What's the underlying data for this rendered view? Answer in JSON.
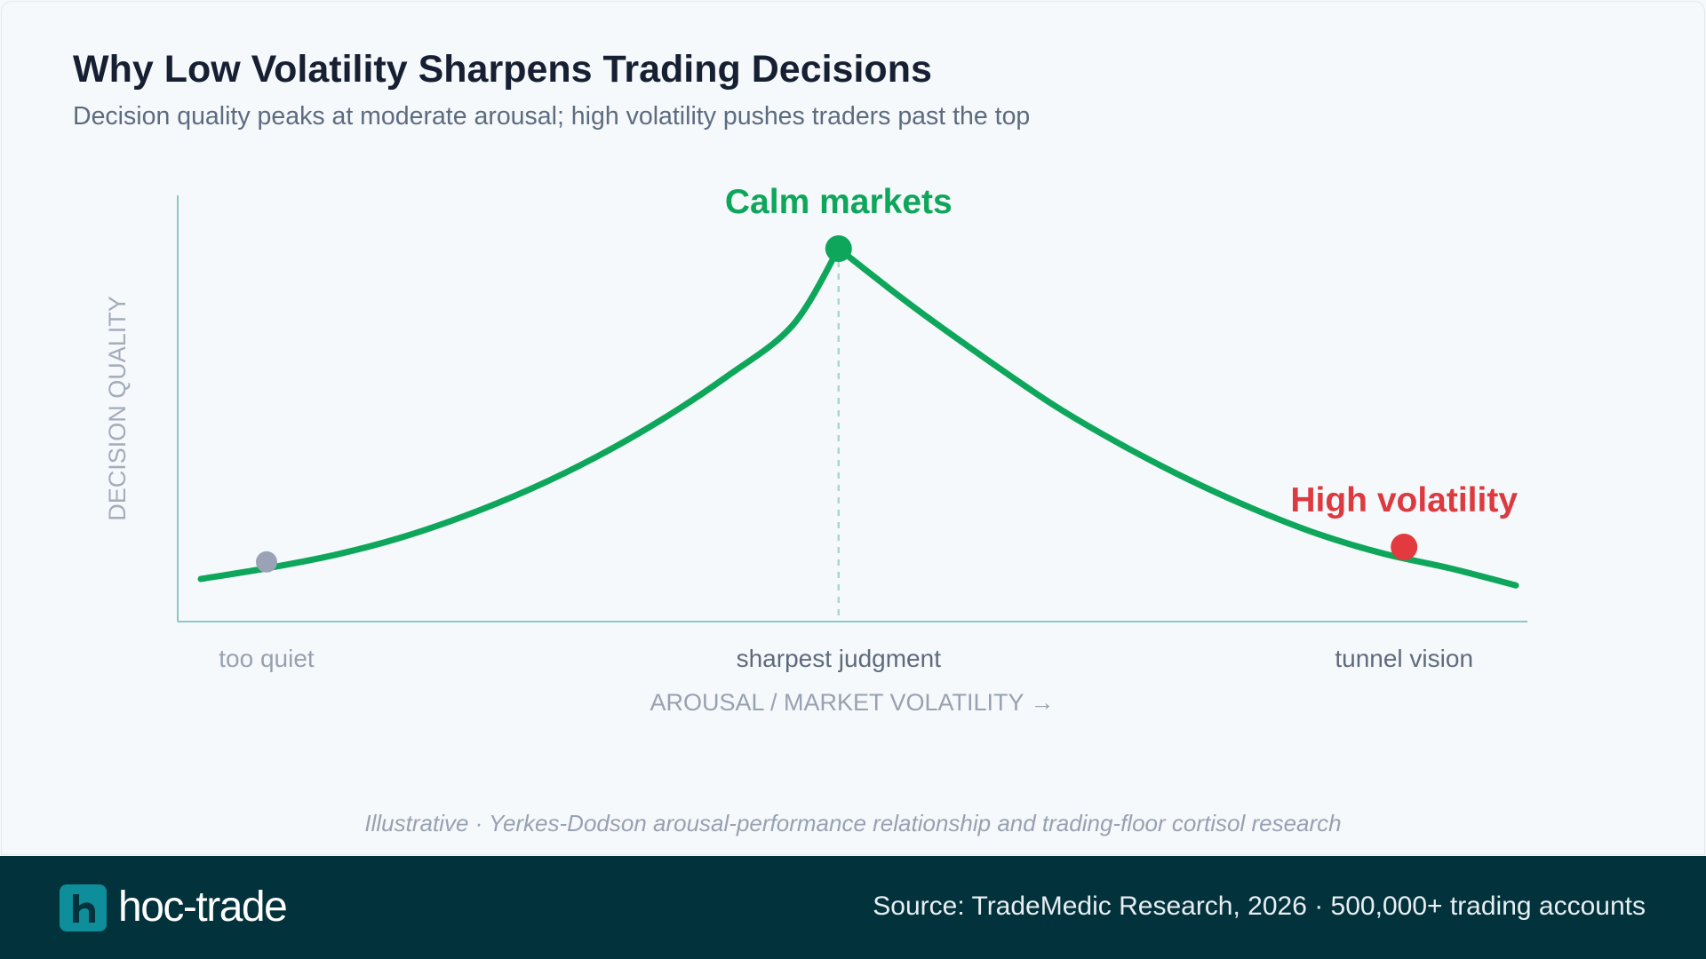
{
  "header": {
    "title": "Why Low Volatility Sharpens Trading Decisions",
    "subtitle": "Decision quality peaks at moderate arousal; high volatility pushes traders past the top"
  },
  "chart_data": {
    "type": "line",
    "title": "Why Low Volatility Sharpens Trading Decisions",
    "subtitle": "Decision quality peaks at moderate arousal; high volatility pushes traders past the top",
    "xlabel": "AROUSAL / MARKET VOLATILITY →",
    "ylabel": "DECISION QUALITY",
    "xlim": [
      0,
      100
    ],
    "ylim": [
      0,
      100
    ],
    "grid": false,
    "axis_numbers_shown": false,
    "series": [
      {
        "color": "#0ea65a",
        "x": [
          0,
          5,
          10,
          15,
          20,
          25,
          30,
          35,
          40,
          45,
          48.5,
          52,
          55,
          60,
          65,
          70,
          75,
          80,
          85,
          90,
          95,
          100
        ],
        "y": [
          10,
          12.5,
          15.5,
          19.5,
          24.7,
          31,
          38.5,
          47.3,
          57.5,
          69.5,
          87.5,
          79,
          72,
          61,
          50.5,
          41.5,
          33.5,
          26.5,
          20.5,
          15.9,
          12.5,
          8.5
        ]
      }
    ],
    "x_ticks": [
      {
        "x": 5,
        "label": "too quiet"
      },
      {
        "x": 48.5,
        "label": "sharpest judgment"
      },
      {
        "x": 91.5,
        "label": "tunnel vision"
      }
    ],
    "points": [
      {
        "x": 5,
        "y": 14,
        "color": "#9aa3b5",
        "label": ""
      },
      {
        "x": 48.5,
        "y": 87.5,
        "color": "#0ea65a",
        "label": "Calm markets"
      },
      {
        "x": 91.5,
        "y": 17.5,
        "color": "#e23a3e",
        "label": "High volatility"
      }
    ],
    "reference_line": {
      "x": 48.5,
      "style": "dashed",
      "color": "#a8d8c6"
    },
    "annotation_colors": {
      "peak": "#0ea65a",
      "high": "#dc3a3f"
    }
  },
  "source_note": "Illustrative · Yerkes-Dodson arousal-performance relationship and trading-floor cortisol research",
  "footer": {
    "logo_text": "hoc-trade",
    "source": "Source: TradeMedic Research, 2026 · 500,000+ trading accounts"
  },
  "colors": {
    "footer_bg": "#02323b",
    "logo_mark": "#0e8d9a",
    "axis": "#8cc6c9"
  }
}
